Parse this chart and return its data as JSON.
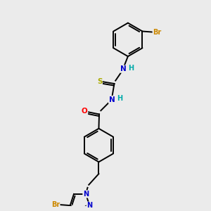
{
  "background_color": "#ebebeb",
  "bond_color": "#000000",
  "atom_colors": {
    "N": "#0000cc",
    "O": "#ff0000",
    "S": "#aaaa00",
    "Br": "#cc8800",
    "C": "#000000",
    "H": "#00aaaa"
  },
  "figsize": [
    3.0,
    3.0
  ],
  "dpi": 100
}
